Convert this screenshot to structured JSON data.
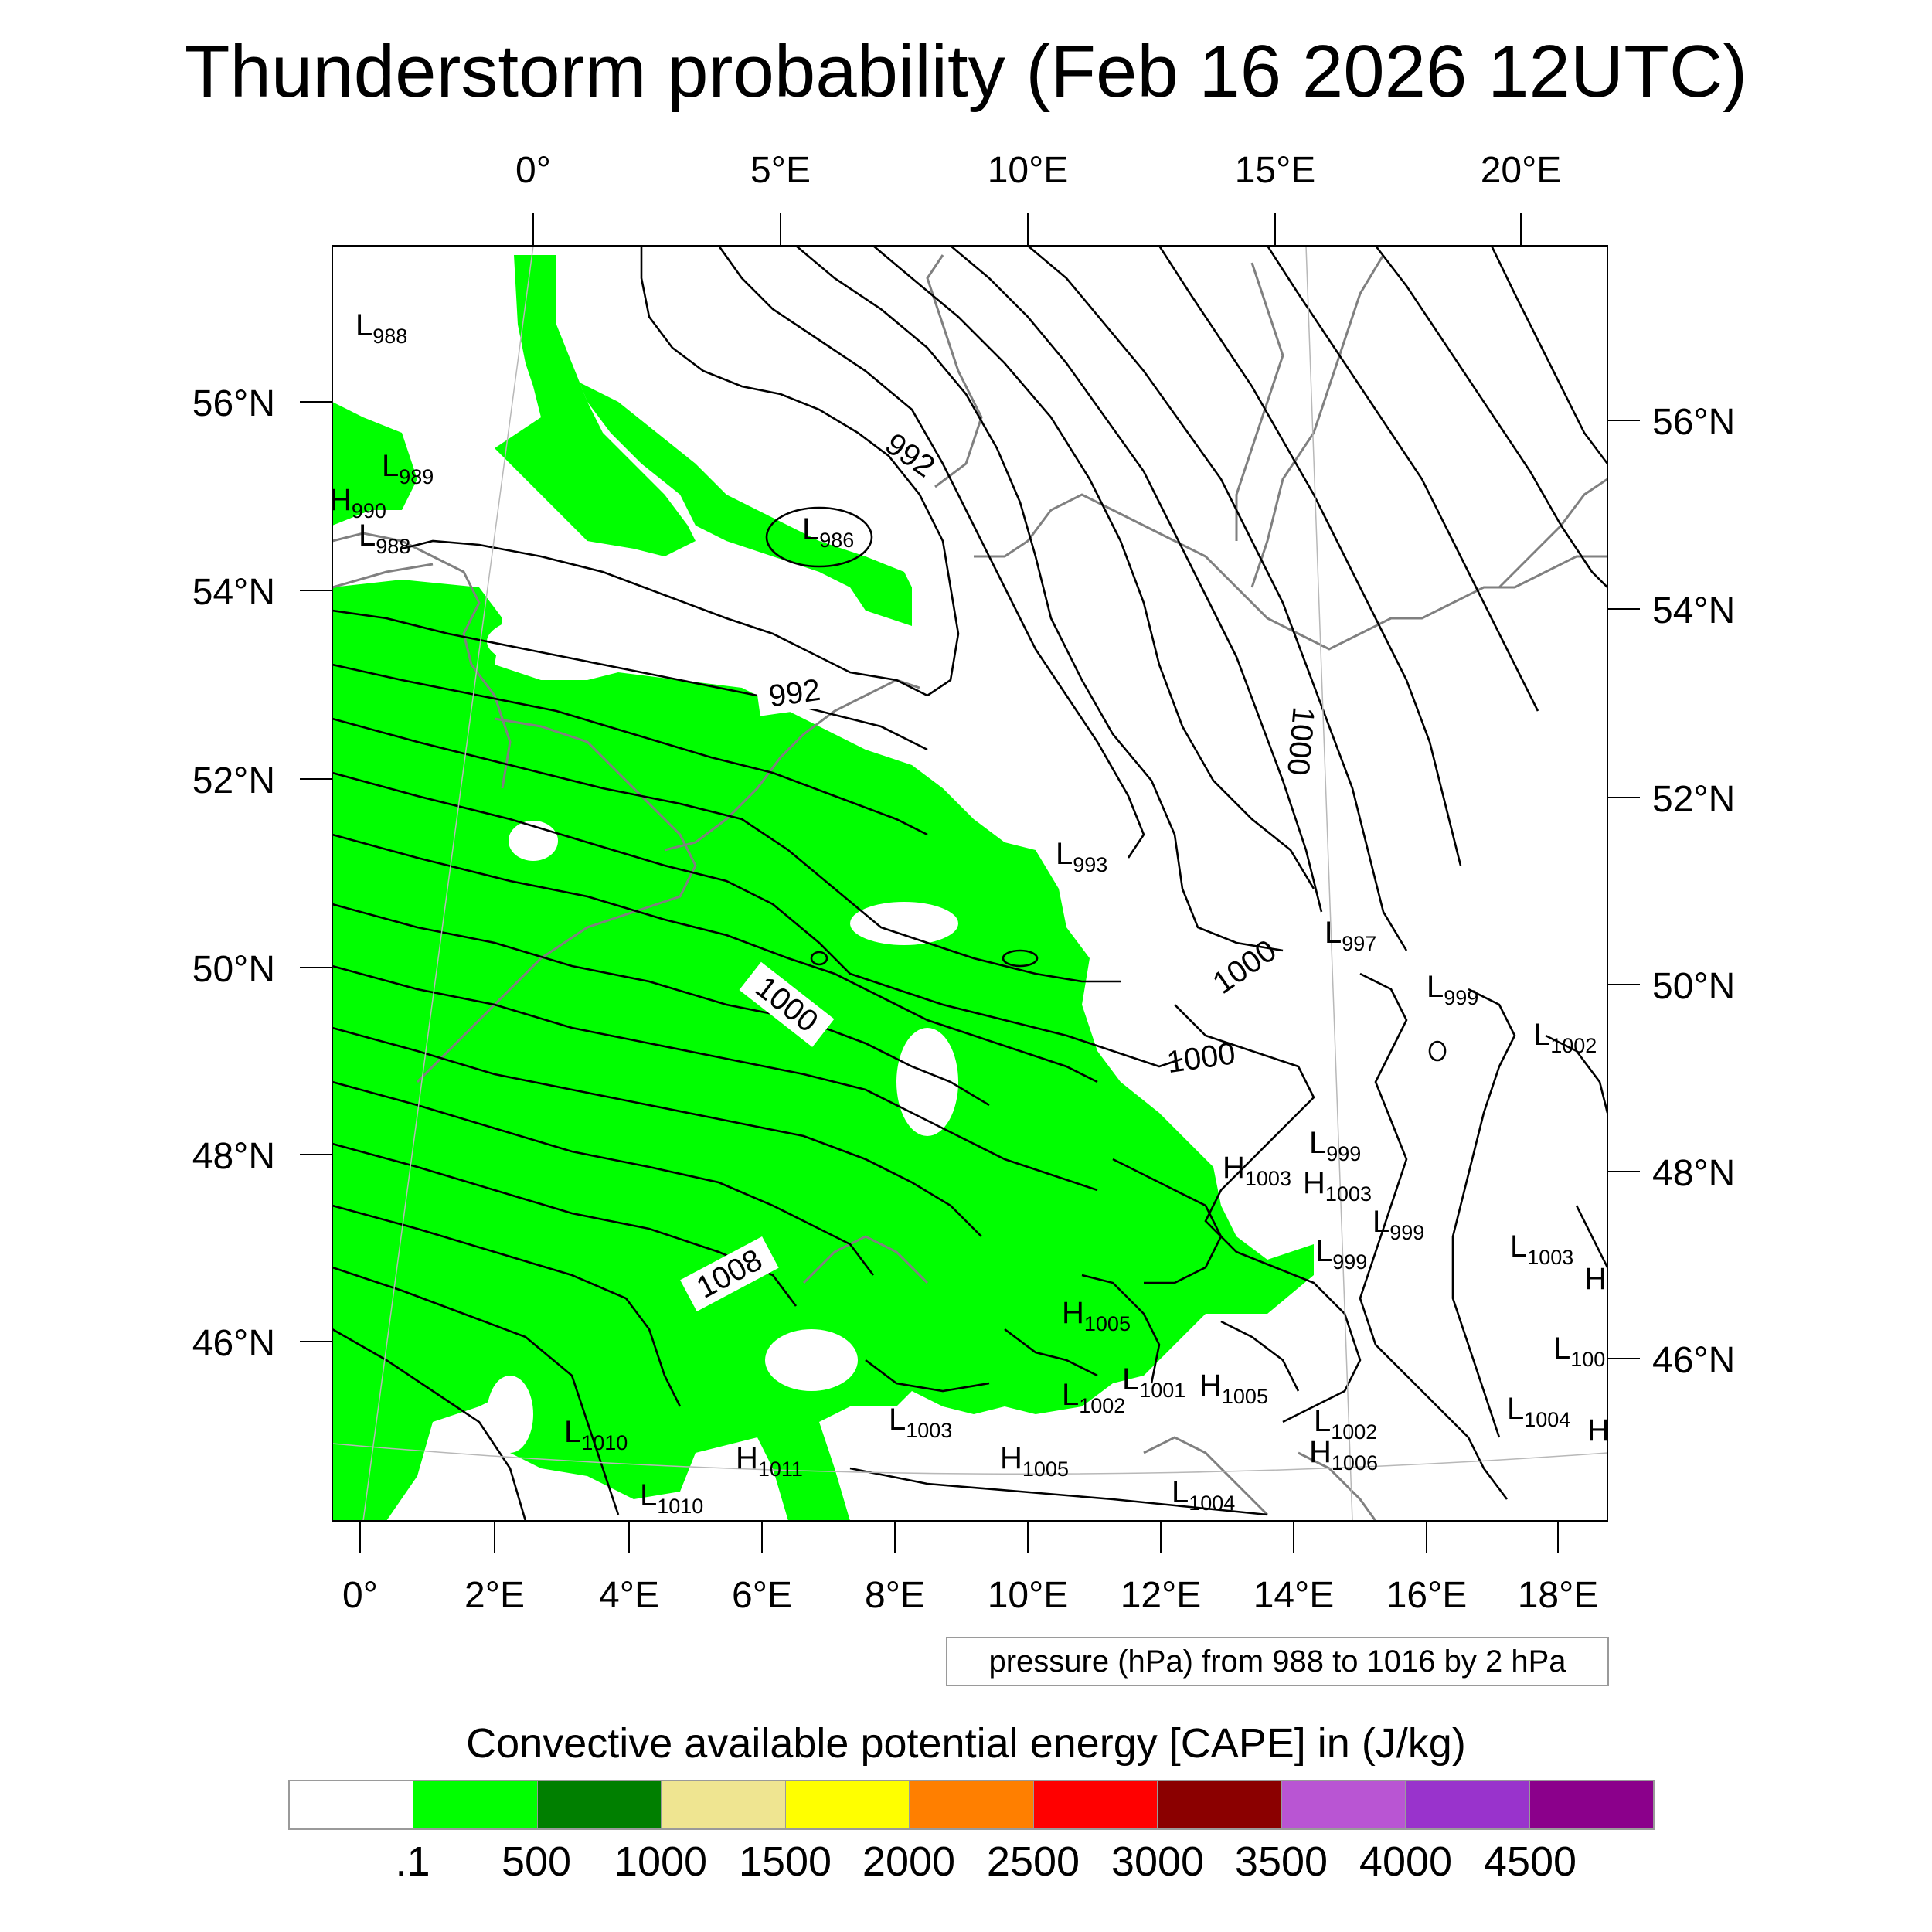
{
  "title": "Thunderstorm probability (Feb 16 2026 12UTC)",
  "top_lon_labels": [
    "0°",
    "5°E",
    "10°E",
    "15°E",
    "20°E"
  ],
  "bottom_lon_labels": [
    "0°",
    "2°E",
    "4°E",
    "6°E",
    "8°E",
    "10°E",
    "12°E",
    "14°E",
    "16°E",
    "18°E"
  ],
  "left_lat_labels": [
    "56°N",
    "54°N",
    "52°N",
    "50°N",
    "48°N",
    "46°N"
  ],
  "right_lat_labels": [
    "56°N",
    "54°N",
    "52°N",
    "50°N",
    "48°N",
    "46°N"
  ],
  "contour_labels": [
    "992",
    "992",
    "1000",
    "1000",
    "1000",
    "1000",
    "1008"
  ],
  "pressure_centers": [
    {
      "type": "L",
      "value": "988"
    },
    {
      "type": "L",
      "value": "989"
    },
    {
      "type": "H",
      "value": "990"
    },
    {
      "type": "L",
      "value": "988"
    },
    {
      "type": "L",
      "value": "986"
    },
    {
      "type": "L",
      "value": "993"
    },
    {
      "type": "L",
      "value": "997"
    },
    {
      "type": "L",
      "value": "999"
    },
    {
      "type": "L",
      "value": "1002"
    },
    {
      "type": "L",
      "value": "999"
    },
    {
      "type": "H",
      "value": "1003"
    },
    {
      "type": "H",
      "value": "1003"
    },
    {
      "type": "L",
      "value": "999"
    },
    {
      "type": "L",
      "value": "999"
    },
    {
      "type": "L",
      "value": "1003"
    },
    {
      "type": "H",
      "value": "1005"
    },
    {
      "type": "L",
      "value": "1001"
    },
    {
      "type": "H",
      "value": "1005"
    },
    {
      "type": "L",
      "value": "1002"
    },
    {
      "type": "L",
      "value": "1003"
    },
    {
      "type": "L",
      "value": "1010"
    },
    {
      "type": "H",
      "value": "1011"
    },
    {
      "type": "L",
      "value": "1010"
    },
    {
      "type": "H",
      "value": "1005"
    },
    {
      "type": "L",
      "value": "1004"
    },
    {
      "type": "L",
      "value": "1002"
    },
    {
      "type": "H",
      "value": "1006"
    },
    {
      "type": "L",
      "value": "1004"
    },
    {
      "type": "L",
      "value": "100"
    },
    {
      "type": "H",
      "value": ""
    },
    {
      "type": "H",
      "value": ""
    }
  ],
  "note": "pressure (hPa) from 988 to 1016 by 2 hPa",
  "colorbar": {
    "title": "Convective available potential energy [CAPE] in (J/kg)",
    "colors": [
      "#ffffff",
      "#00ff00",
      "#007f00",
      "#efe591",
      "#ffff00",
      "#ff7f00",
      "#ff0000",
      "#8b0000",
      "#b955d3",
      "#9933cc",
      "#8b008b"
    ],
    "labels": [
      ".1",
      "500",
      "1000",
      "1500",
      "2000",
      "2500",
      "3000",
      "3500",
      "4000",
      "4500"
    ]
  },
  "colors": {
    "cape_green": "#00ff00",
    "contour": "#000000",
    "coast": "#808080"
  }
}
